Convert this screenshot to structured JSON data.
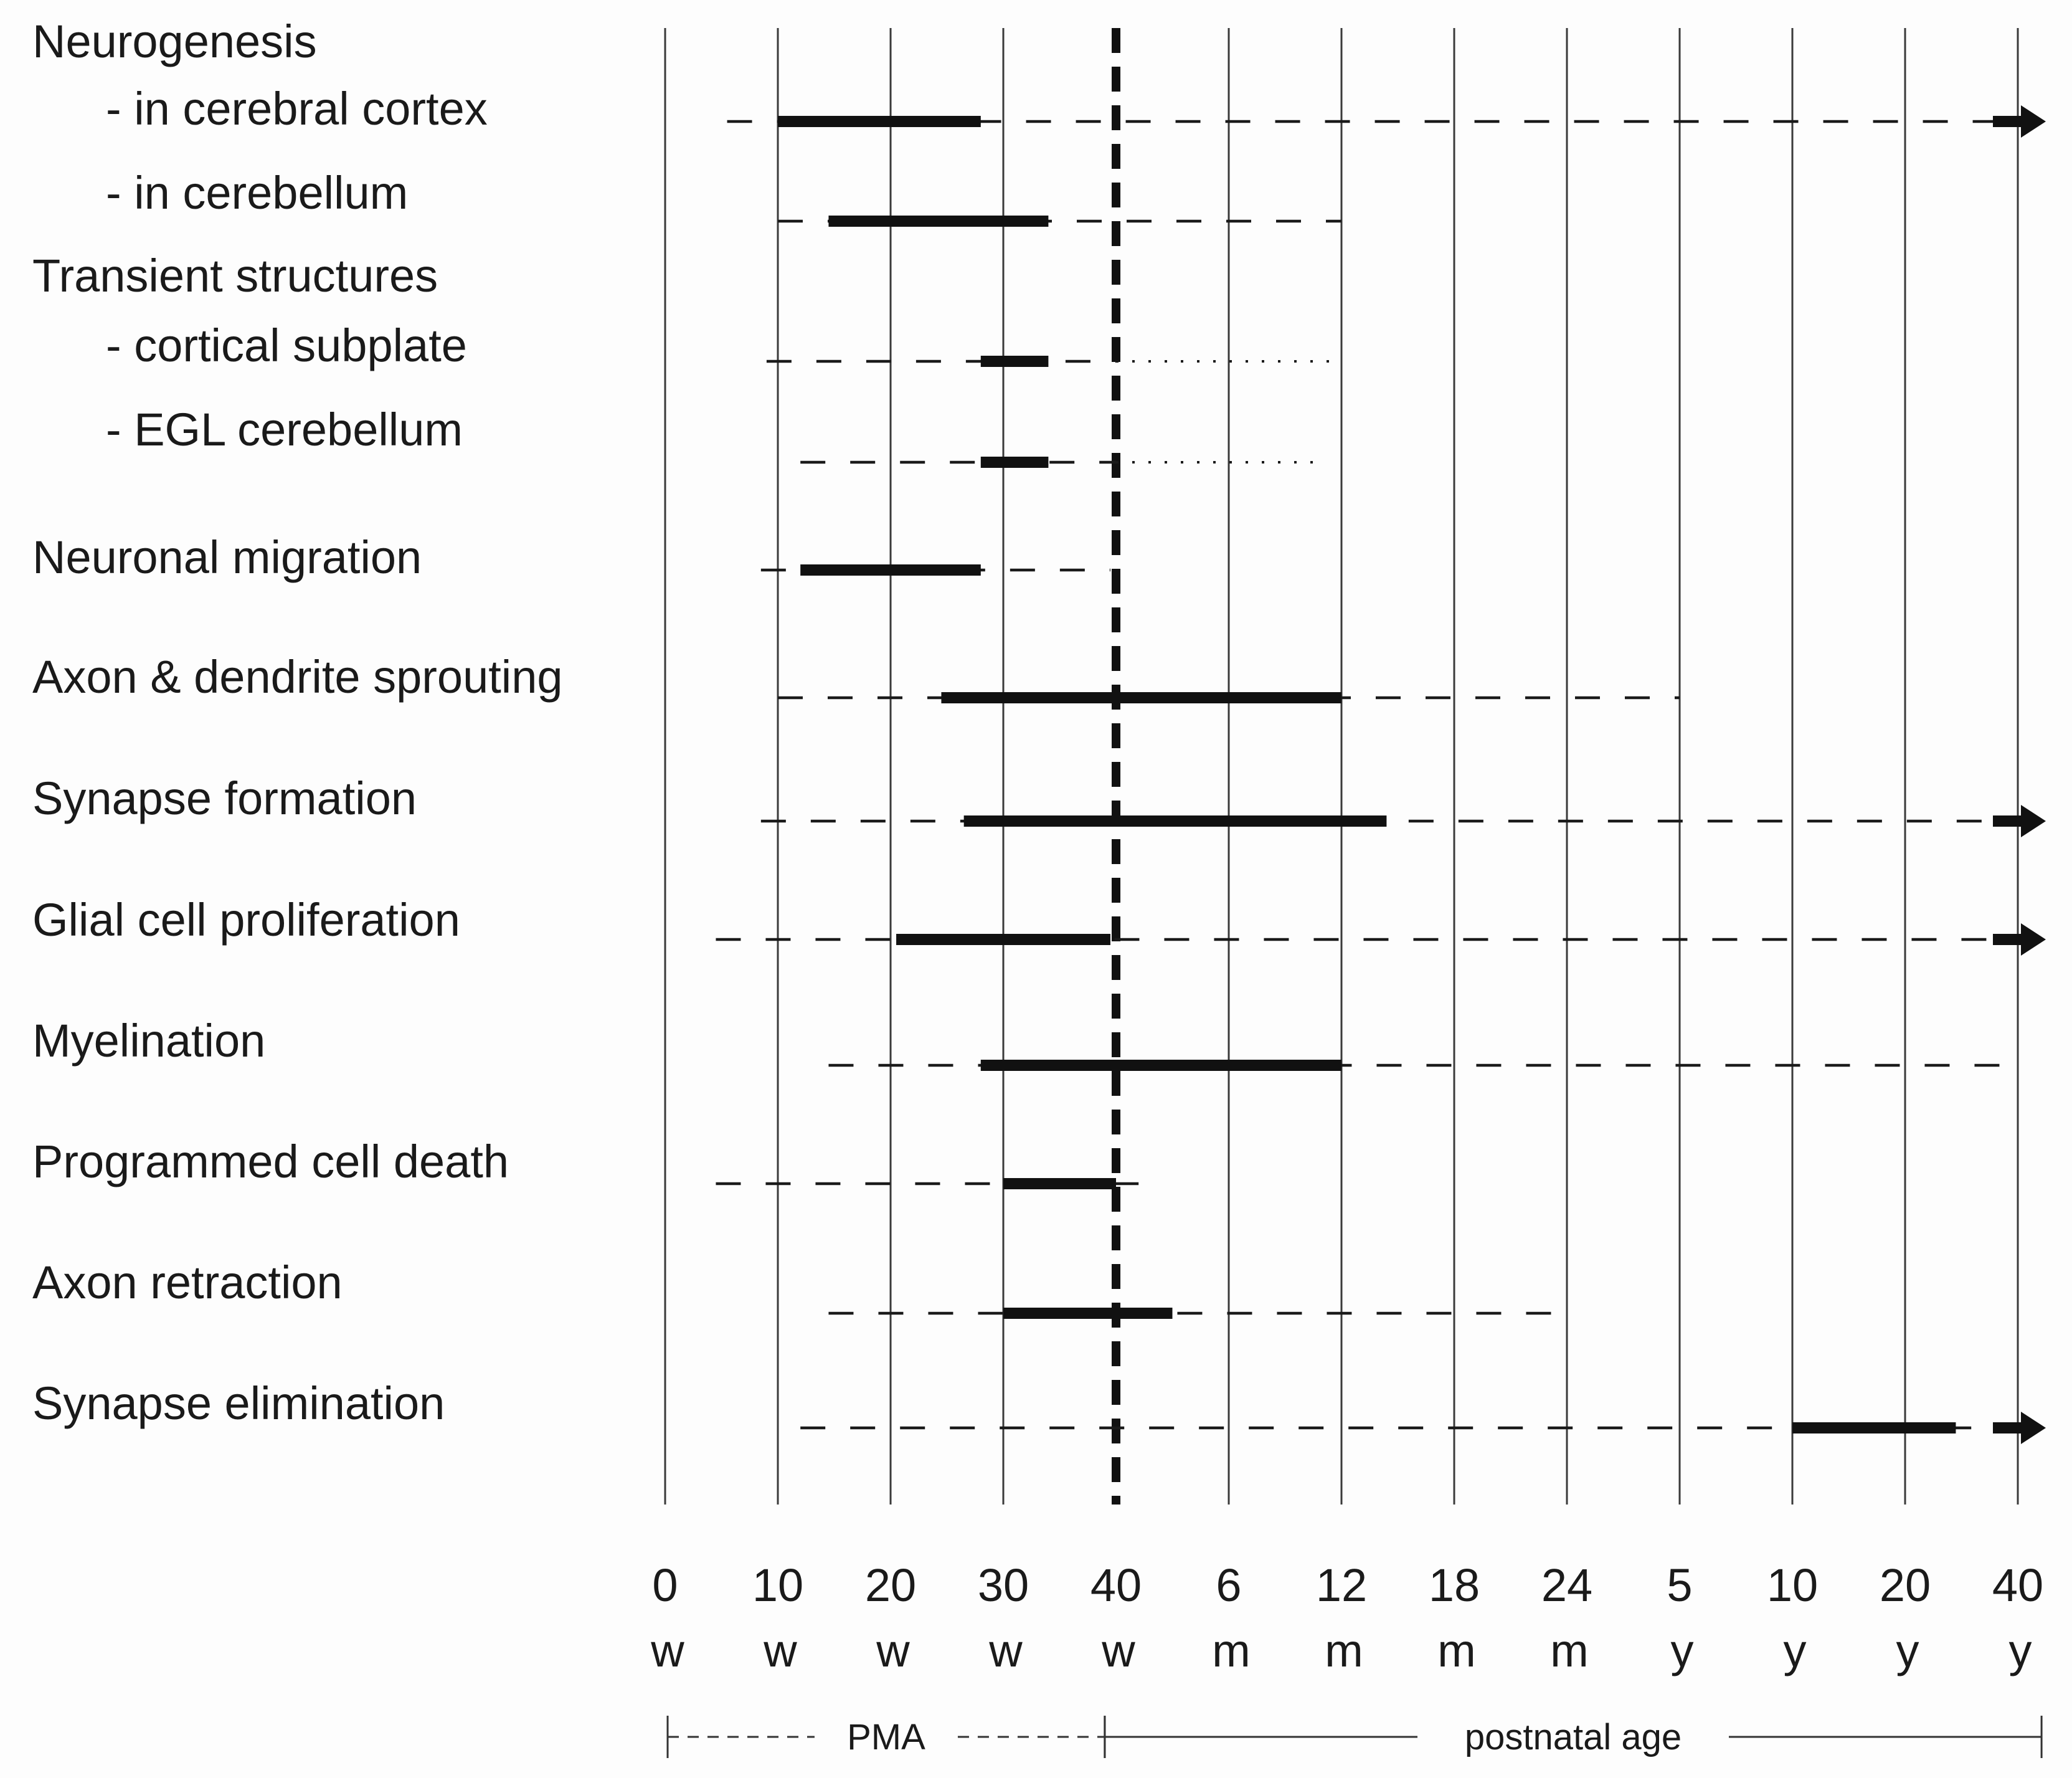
{
  "chart_data": {
    "type": "timeline",
    "title": "",
    "ticks": [
      {
        "num": "0",
        "unit": "w"
      },
      {
        "num": "10",
        "unit": "w"
      },
      {
        "num": "20",
        "unit": "w"
      },
      {
        "num": "30",
        "unit": "w"
      },
      {
        "num": "40",
        "unit": "w"
      },
      {
        "num": "6",
        "unit": "m"
      },
      {
        "num": "12",
        "unit": "m"
      },
      {
        "num": "18",
        "unit": "m"
      },
      {
        "num": "24",
        "unit": "m"
      },
      {
        "num": "5",
        "unit": "y"
      },
      {
        "num": "10",
        "unit": "y"
      },
      {
        "num": "20",
        "unit": "y"
      },
      {
        "num": "40",
        "unit": "y"
      }
    ],
    "birth_marker_tick_index": 4,
    "axis_spans": [
      {
        "label": "PMA",
        "from": 0,
        "to": 3.9,
        "style": "dashed"
      },
      {
        "label": "postnatal age",
        "from": 3.9,
        "to": 12.1,
        "style": "solid"
      }
    ],
    "group_headers": [
      {
        "label": "Neurogenesis",
        "before_row": 0
      },
      {
        "label": "Transient structures",
        "before_row": 2
      }
    ],
    "rows": [
      {
        "label": "-  in cerebral cortex",
        "dashed": [
          0.55,
          11.8
        ],
        "solid": [
          1.0,
          2.8
        ],
        "arrow": true
      },
      {
        "label": "-  in cerebellum",
        "dashed": [
          1.0,
          6.0
        ],
        "solid": [
          1.45,
          3.4
        ],
        "arrow": false
      },
      {
        "label": "-  cortical subplate",
        "dashed": [
          0.9,
          4.0
        ],
        "dotted": [
          4.0,
          6.0
        ],
        "solid": [
          2.8,
          3.4
        ],
        "arrow": false
      },
      {
        "label": "-  EGL cerebellum",
        "dashed": [
          1.2,
          4.0
        ],
        "dotted": [
          4.0,
          5.85
        ],
        "solid": [
          2.8,
          3.4
        ],
        "arrow": false
      },
      {
        "label": "Neuronal migration",
        "dashed": [
          0.85,
          3.95
        ],
        "solid": [
          1.2,
          2.8
        ],
        "arrow": false
      },
      {
        "label": "Axon & dendrite sprouting",
        "dashed": [
          1.0,
          9.0
        ],
        "solid": [
          2.45,
          6.0
        ],
        "arrow": false
      },
      {
        "label": "Synapse formation",
        "dashed": [
          0.85,
          11.8
        ],
        "solid": [
          2.65,
          6.4
        ],
        "arrow": true
      },
      {
        "label": "Glial cell proliferation",
        "dashed": [
          0.45,
          11.8
        ],
        "solid": [
          2.05,
          3.95
        ],
        "arrow": true
      },
      {
        "label": "Myelination",
        "dashed": [
          1.45,
          11.95
        ],
        "solid": [
          2.8,
          6.0
        ],
        "arrow": false
      },
      {
        "label": "Programmed cell death",
        "dashed": [
          0.45,
          4.2
        ],
        "solid": [
          3.0,
          4.0
        ],
        "arrow": false
      },
      {
        "label": "Axon retraction",
        "dashed": [
          1.45,
          8.0
        ],
        "solid": [
          3.0,
          4.5
        ],
        "arrow": false
      },
      {
        "label": "Synapse elimination",
        "dashed": [
          1.2,
          11.8
        ],
        "solid": [
          10.0,
          11.45
        ],
        "arrow": true
      }
    ]
  }
}
